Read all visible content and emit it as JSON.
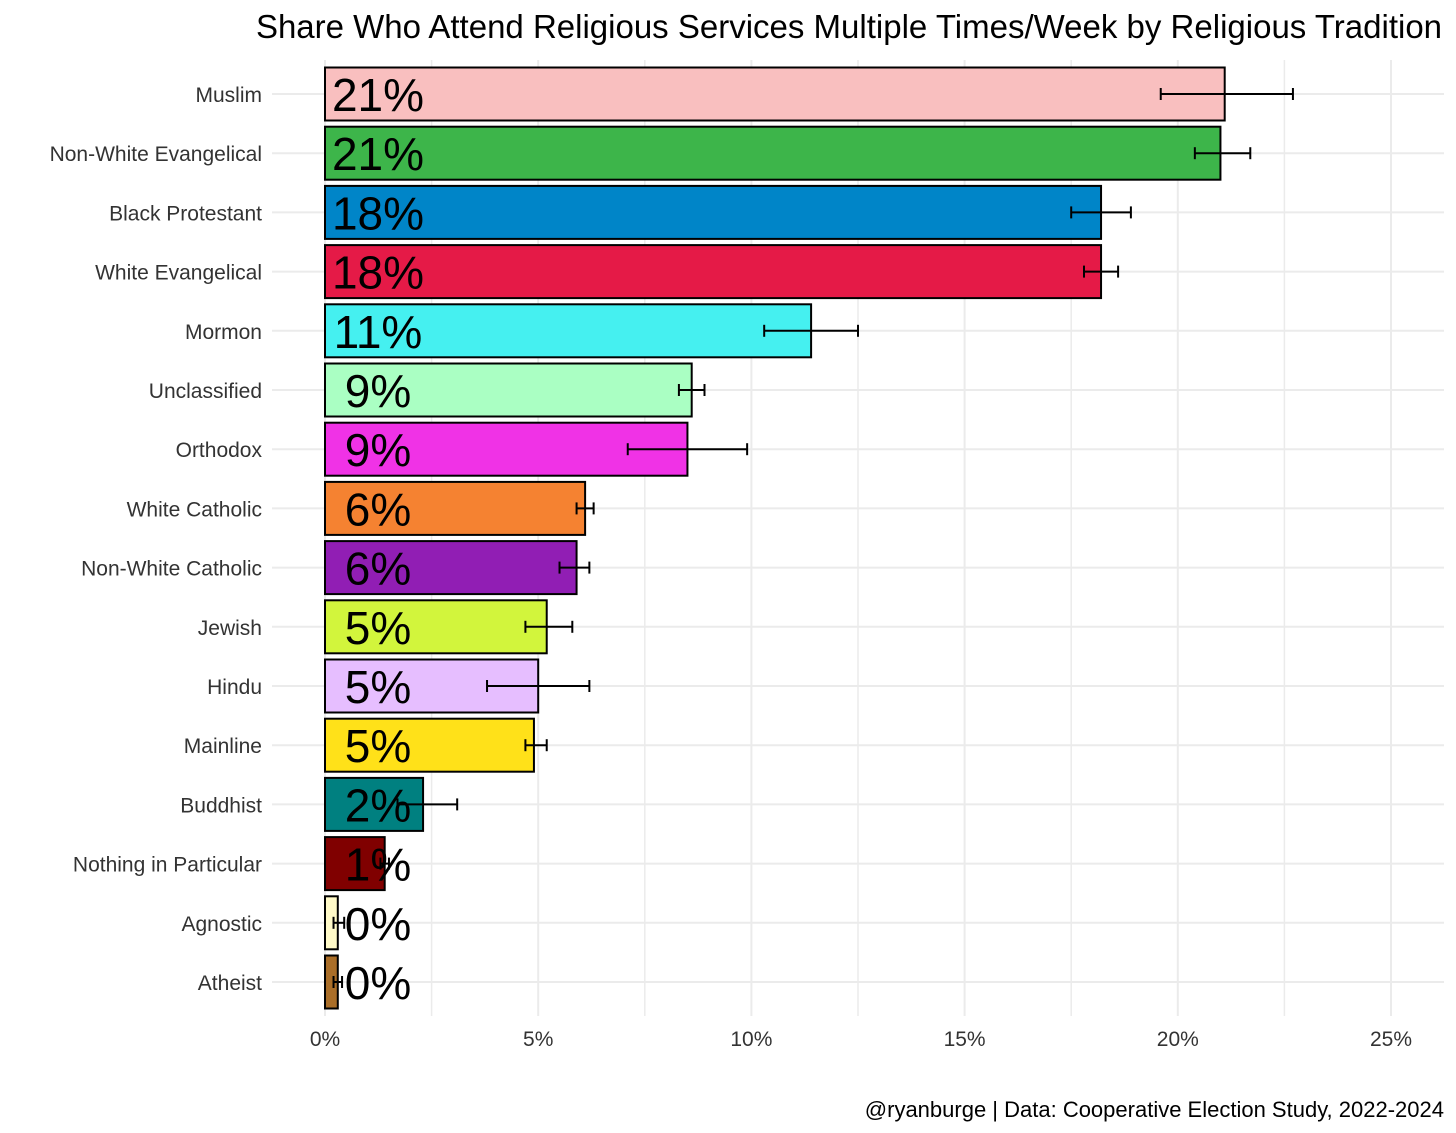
{
  "chart_data": {
    "type": "bar",
    "orientation": "horizontal",
    "title": "Share Who Attend Religious Services Multiple Times/Week by Religious Tradition",
    "caption": "@ryanburge | Data: Cooperative Election Study, 2022-2024",
    "xlabel": "",
    "ylabel": "",
    "xlim": [
      0,
      25
    ],
    "x_ticks": [
      0,
      5,
      10,
      15,
      20,
      25
    ],
    "x_tick_labels": [
      "0%",
      "5%",
      "10%",
      "15%",
      "20%",
      "25%"
    ],
    "grid": true,
    "legend": "none",
    "categories": [
      {
        "name": "Muslim",
        "value": 21.1,
        "label": "21%",
        "err_low": 19.6,
        "err_high": 22.7,
        "color": "#f9bfbf"
      },
      {
        "name": "Non-White Evangelical",
        "value": 21.0,
        "label": "21%",
        "err_low": 20.4,
        "err_high": 21.7,
        "color": "#3db54a"
      },
      {
        "name": "Black Protestant",
        "value": 18.2,
        "label": "18%",
        "err_low": 17.5,
        "err_high": 18.9,
        "color": "#0085c8"
      },
      {
        "name": "White Evangelical",
        "value": 18.2,
        "label": "18%",
        "err_low": 17.8,
        "err_high": 18.6,
        "color": "#e51a47"
      },
      {
        "name": "Mormon",
        "value": 11.4,
        "label": "11%",
        "err_low": 10.3,
        "err_high": 12.5,
        "color": "#45f0f0"
      },
      {
        "name": "Unclassified",
        "value": 8.6,
        "label": "9%",
        "err_low": 8.3,
        "err_high": 8.9,
        "color": "#aaffc3"
      },
      {
        "name": "Orthodox",
        "value": 8.5,
        "label": "9%",
        "err_low": 7.1,
        "err_high": 9.9,
        "color": "#f032e6"
      },
      {
        "name": "White Catholic",
        "value": 6.1,
        "label": "6%",
        "err_low": 5.9,
        "err_high": 6.3,
        "color": "#f58231"
      },
      {
        "name": "Non-White Catholic",
        "value": 5.9,
        "label": "6%",
        "err_low": 5.5,
        "err_high": 6.2,
        "color": "#911eb4"
      },
      {
        "name": "Jewish",
        "value": 5.2,
        "label": "5%",
        "err_low": 4.7,
        "err_high": 5.8,
        "color": "#d2f53c"
      },
      {
        "name": "Hindu",
        "value": 5.0,
        "label": "5%",
        "err_low": 3.8,
        "err_high": 6.2,
        "color": "#e6beff"
      },
      {
        "name": "Mainline",
        "value": 4.9,
        "label": "5%",
        "err_low": 4.7,
        "err_high": 5.2,
        "color": "#ffe119"
      },
      {
        "name": "Buddhist",
        "value": 2.3,
        "label": "2%",
        "err_low": 1.7,
        "err_high": 3.1,
        "color": "#008080"
      },
      {
        "name": "Nothing in Particular",
        "value": 1.4,
        "label": "1%",
        "err_low": 1.3,
        "err_high": 1.5,
        "color": "#800000"
      },
      {
        "name": "Agnostic",
        "value": 0.3,
        "label": "0%",
        "err_low": 0.2,
        "err_high": 0.45,
        "color": "#fffac8"
      },
      {
        "name": "Atheist",
        "value": 0.3,
        "label": "0%",
        "err_low": 0.2,
        "err_high": 0.4,
        "color": "#aa6e28"
      }
    ]
  }
}
